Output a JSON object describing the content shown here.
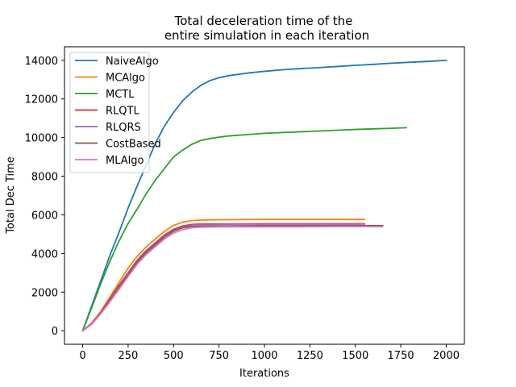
{
  "chart_data": {
    "type": "line",
    "title": [
      "Total deceleration time of the",
      "entire simulation in each iteration"
    ],
    "xlabel": "Iterations",
    "ylabel": "Total Dec Time",
    "xlim": [
      -100,
      2100
    ],
    "ylim": [
      -700,
      14700
    ],
    "xticks": [
      0,
      250,
      500,
      750,
      1000,
      1250,
      1500,
      1750,
      2000
    ],
    "yticks": [
      0,
      2000,
      4000,
      6000,
      8000,
      10000,
      12000,
      14000
    ],
    "grid": false,
    "legend_placement": "top-left",
    "series": [
      {
        "name": "NaiveAlgo",
        "color": "#1f77b4",
        "x": [
          0,
          50,
          100,
          150,
          200,
          250,
          300,
          350,
          400,
          450,
          500,
          550,
          600,
          650,
          700,
          750,
          800,
          900,
          1000,
          1100,
          1200,
          1300,
          1400,
          1500,
          1600,
          1700,
          1800,
          1900,
          2000
        ],
        "y": [
          0,
          1300,
          2600,
          3900,
          5100,
          6350,
          7500,
          8600,
          9700,
          10600,
          11300,
          11900,
          12350,
          12700,
          12950,
          13100,
          13200,
          13330,
          13430,
          13510,
          13570,
          13620,
          13680,
          13740,
          13790,
          13850,
          13900,
          13940,
          14000
        ]
      },
      {
        "name": "MCAlgo",
        "color": "#ff7f0e",
        "x": [
          0,
          50,
          100,
          150,
          200,
          250,
          300,
          350,
          400,
          450,
          500,
          550,
          600,
          650,
          700,
          800,
          1000,
          1200,
          1400,
          1550
        ],
        "y": [
          0,
          400,
          1000,
          1750,
          2500,
          3250,
          3850,
          4350,
          4750,
          5150,
          5450,
          5620,
          5700,
          5730,
          5740,
          5750,
          5760,
          5760,
          5760,
          5760
        ]
      },
      {
        "name": "MCTL",
        "color": "#2ca02c",
        "x": [
          0,
          50,
          100,
          150,
          200,
          250,
          300,
          350,
          400,
          450,
          500,
          550,
          600,
          650,
          700,
          750,
          800,
          900,
          1000,
          1100,
          1200,
          1300,
          1400,
          1500,
          1600,
          1700,
          1780
        ],
        "y": [
          0,
          1200,
          2450,
          3600,
          4650,
          5550,
          6300,
          7100,
          7800,
          8400,
          9000,
          9350,
          9650,
          9850,
          9950,
          10020,
          10080,
          10150,
          10220,
          10260,
          10300,
          10340,
          10380,
          10420,
          10450,
          10480,
          10510
        ]
      },
      {
        "name": "RLQTL",
        "color": "#d62728",
        "x": [
          0,
          50,
          100,
          150,
          200,
          250,
          300,
          350,
          400,
          450,
          500,
          550,
          600,
          650,
          700,
          800,
          1000,
          1200,
          1400,
          1550
        ],
        "y": [
          0,
          380,
          950,
          1650,
          2350,
          3000,
          3650,
          4150,
          4550,
          4950,
          5250,
          5420,
          5500,
          5520,
          5530,
          5530,
          5540,
          5540,
          5540,
          5540
        ]
      },
      {
        "name": "RLQRS",
        "color": "#9467bd",
        "x": [
          0,
          50,
          100,
          150,
          200,
          250,
          300,
          350,
          400,
          450,
          500,
          550,
          600,
          650,
          700,
          800,
          1000,
          1200,
          1400,
          1550
        ],
        "y": [
          0,
          360,
          920,
          1600,
          2300,
          2950,
          3600,
          4100,
          4500,
          4900,
          5200,
          5380,
          5470,
          5500,
          5510,
          5520,
          5520,
          5520,
          5520,
          5520
        ]
      },
      {
        "name": "CostBased",
        "color": "#8c564b",
        "x": [
          0,
          50,
          100,
          150,
          200,
          250,
          300,
          350,
          400,
          450,
          500,
          550,
          600,
          650,
          700,
          800,
          1000,
          1200,
          1400,
          1650
        ],
        "y": [
          0,
          350,
          900,
          1550,
          2250,
          2900,
          3550,
          4050,
          4450,
          4850,
          5150,
          5330,
          5400,
          5420,
          5430,
          5430,
          5440,
          5440,
          5440,
          5440
        ]
      },
      {
        "name": "MLAlgo",
        "color": "#e377c2",
        "x": [
          0,
          50,
          100,
          150,
          200,
          250,
          300,
          350,
          400,
          450,
          500,
          550,
          600,
          650,
          700,
          800,
          1000,
          1200,
          1400,
          1650
        ],
        "y": [
          0,
          340,
          880,
          1500,
          2150,
          2800,
          3450,
          3950,
          4350,
          4750,
          5050,
          5230,
          5330,
          5360,
          5370,
          5380,
          5380,
          5380,
          5390,
          5390
        ]
      }
    ]
  }
}
